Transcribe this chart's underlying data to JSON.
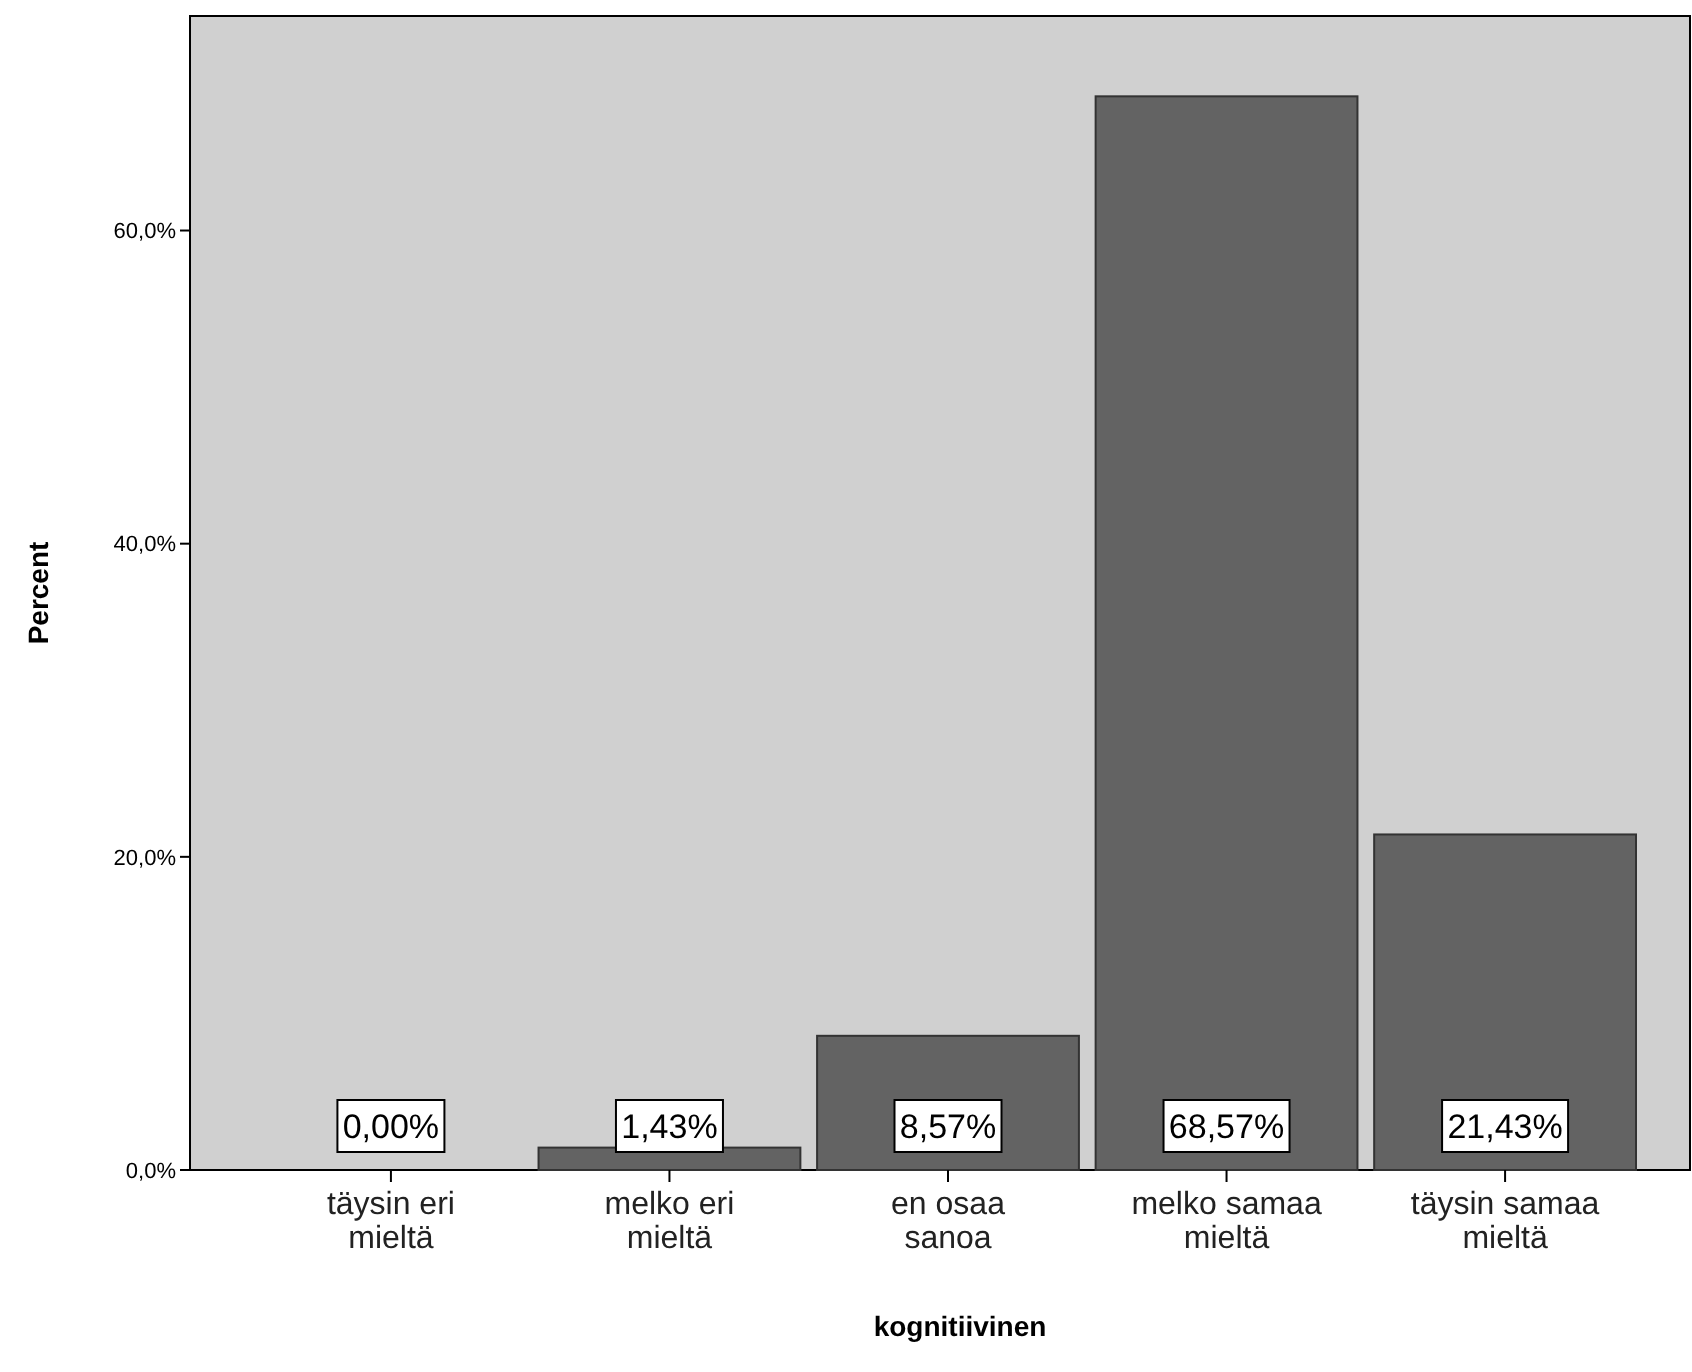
{
  "chart_data": {
    "type": "bar",
    "xlabel": "kognitiivinen",
    "ylabel": "Percent",
    "categories": [
      "täysin eri mieltä",
      "melko eri mieltä",
      "en osaa sanoa",
      "melko samaa mieltä",
      "täysin samaa mieltä"
    ],
    "values": [
      0,
      1.43,
      8.57,
      68.57,
      21.43
    ],
    "value_labels": [
      "0,00%",
      "1,43%",
      "8,57%",
      "68,57%",
      "21,43%"
    ],
    "color": "#636363",
    "ylim": [
      0,
      73.7
    ],
    "yticks": [
      {
        "value": 0,
        "label": "0,0%"
      },
      {
        "value": 20,
        "label": "20,0%"
      },
      {
        "value": 40,
        "label": "40,0%"
      },
      {
        "value": 60,
        "label": "60,0%"
      }
    ],
    "grid": false
  }
}
